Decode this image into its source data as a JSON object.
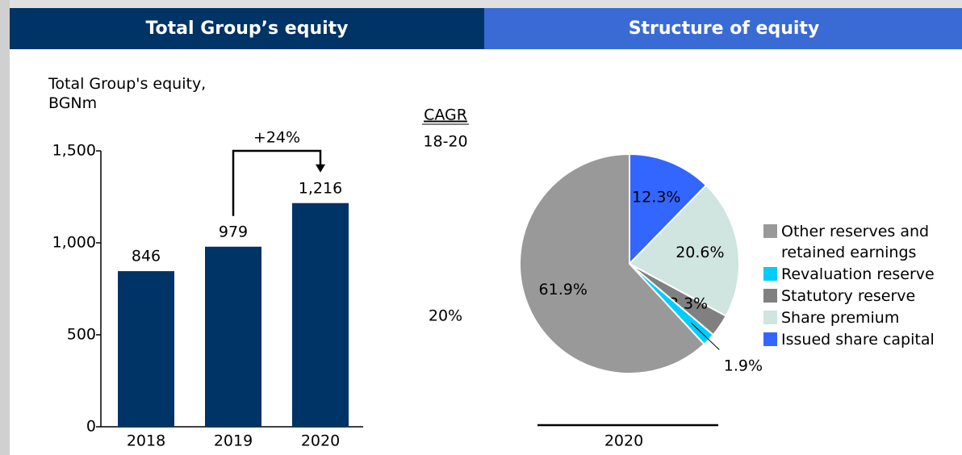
{
  "chart_data": [
    {
      "type": "bar",
      "title": "Total Group’s equity",
      "y_label": "Total Group's equity, BGNm",
      "categories": [
        "2018",
        "2019",
        "2020"
      ],
      "values": [
        846,
        979,
        1216
      ],
      "value_labels": [
        "846",
        "979",
        "1,216"
      ],
      "color": "#003366",
      "ylim": [
        0,
        1500
      ],
      "yticks": [
        0,
        500,
        {
          "value": 1000,
          "label": "1,000"
        },
        {
          "value": 1500,
          "label": "1,500"
        }
      ],
      "annotations": {
        "growth": "+24%",
        "cagr_title": "CAGR",
        "cagr_period": "18-20",
        "cagr_value": "20%"
      }
    },
    {
      "type": "pie",
      "title": "Structure of equity",
      "x_label": "2020",
      "series": [
        {
          "name": "Other reserves and retained earnings",
          "color": "#999999",
          "values": [
            61.9
          ],
          "value_labels": [
            "61.9%"
          ]
        },
        {
          "name": "Revaluation reserve",
          "color": "#00ccff",
          "values": [
            1.9
          ],
          "value_labels": [
            "1.9%"
          ]
        },
        {
          "name": "Statutory reserve",
          "color": "#808080",
          "values": [
            3.3
          ],
          "value_labels": [
            "3.3%"
          ]
        },
        {
          "name": "Share premium",
          "color": "#d0e4e0",
          "values": [
            20.6
          ],
          "value_labels": [
            "20.6%"
          ]
        },
        {
          "name": "Issued share capital",
          "color": "#3366ff",
          "values": [
            12.3
          ],
          "value_labels": [
            "12.3%"
          ]
        }
      ]
    }
  ]
}
